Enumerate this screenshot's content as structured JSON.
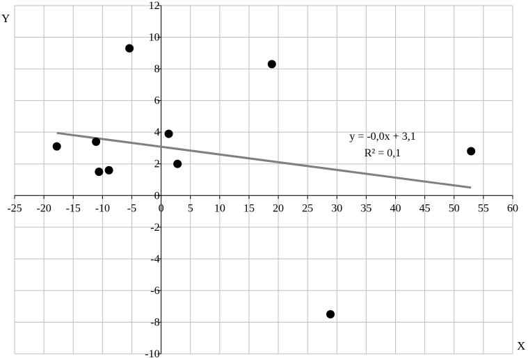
{
  "chart_data": {
    "type": "scatter",
    "title": "",
    "xlabel": "X",
    "ylabel": "Y",
    "xlim": [
      -25,
      60
    ],
    "ylim": [
      -10,
      12
    ],
    "x_ticks": [
      -25,
      -20,
      -15,
      -10,
      -5,
      0,
      5,
      10,
      15,
      20,
      25,
      30,
      35,
      40,
      45,
      50,
      55,
      60
    ],
    "y_ticks": [
      -10,
      -8,
      -6,
      -4,
      -2,
      0,
      2,
      4,
      6,
      8,
      10,
      12
    ],
    "grid": "major gridlines on",
    "legend": "none",
    "points": [
      {
        "x": -17.8,
        "y": 3.1
      },
      {
        "x": -11.1,
        "y": 3.4
      },
      {
        "x": -10.6,
        "y": 1.5
      },
      {
        "x": -8.9,
        "y": 1.6
      },
      {
        "x": -5.4,
        "y": 9.3
      },
      {
        "x": 1.3,
        "y": 3.9
      },
      {
        "x": 2.8,
        "y": 2.0
      },
      {
        "x": 18.9,
        "y": 8.3
      },
      {
        "x": 28.9,
        "y": -7.5
      },
      {
        "x": 52.9,
        "y": 2.8
      }
    ],
    "trendline": {
      "x_range": [
        -17.8,
        52.9
      ],
      "y_range": [
        3.95,
        0.5
      ]
    },
    "annotations": {
      "equation": "y = -0,0x + 3,1",
      "r_squared": "R² = 0,1"
    },
    "colors": {
      "marker": "#000000",
      "trendline": "#808080",
      "grid": "#bdbdbd",
      "axis": "#000000"
    }
  }
}
